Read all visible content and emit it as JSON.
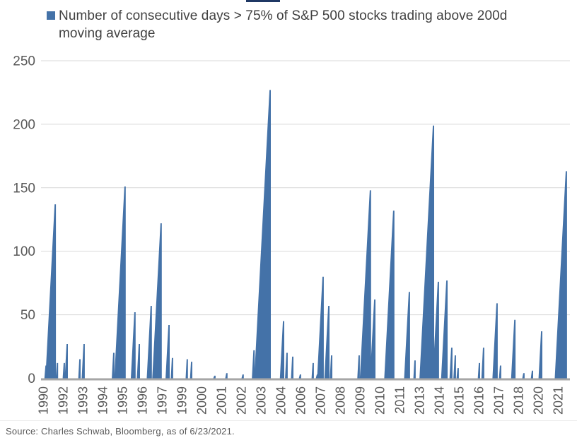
{
  "colors": {
    "bar": "#4472a8",
    "gridline": "#d9d9d9",
    "axis_line": "#a6a6a6",
    "axis_text": "#595959",
    "legend_text": "#404040",
    "top_artifact": "#1f3864"
  },
  "legend": {
    "line1": "Number of consecutive days > 75% of S&P 500 stocks trading above 200d",
    "line2": "moving average"
  },
  "source": {
    "text": "Source: Charles Schwab, Bloomberg, as of 6/23/2021."
  },
  "chart_data": {
    "type": "area",
    "title": "Number of consecutive days > 75% of S&P 500 stocks trading above 200d moving average",
    "xlabel": "",
    "ylabel": "",
    "ylim": [
      0,
      250
    ],
    "y_ticks": [
      0,
      50,
      100,
      150,
      200,
      250
    ],
    "grid": "horizontal",
    "legend_position": "top-left",
    "x_labels": [
      "1990",
      "1992",
      "1993",
      "1994",
      "1995",
      "1996",
      "1997",
      "1999",
      "2000",
      "2001",
      "2002",
      "2003",
      "2004",
      "2006",
      "2007",
      "2008",
      "2009",
      "2010",
      "2011",
      "2013",
      "2014",
      "2015",
      "2016",
      "2017",
      "2018",
      "2020",
      "2021"
    ],
    "spikes_format": "[approx_year_of_streak_end, peak_consecutive_days]",
    "spikes": [
      [
        1990.05,
        10
      ],
      [
        1990.6,
        137
      ],
      [
        1990.73,
        12
      ],
      [
        1991.14,
        12
      ],
      [
        1991.31,
        27
      ],
      [
        1992.07,
        15
      ],
      [
        1992.32,
        27
      ],
      [
        1994.09,
        20
      ],
      [
        1994.76,
        151
      ],
      [
        1995.35,
        52
      ],
      [
        1995.61,
        27
      ],
      [
        1996.32,
        57
      ],
      [
        1996.62,
        44
      ],
      [
        1996.91,
        122
      ],
      [
        1997.38,
        42
      ],
      [
        1997.59,
        16
      ],
      [
        1998.47,
        15
      ],
      [
        1998.73,
        13
      ],
      [
        2000.12,
        2
      ],
      [
        2000.83,
        4
      ],
      [
        2001.8,
        3
      ],
      [
        2002.45,
        22
      ],
      [
        2003.41,
        227
      ],
      [
        2004.21,
        45
      ],
      [
        2004.42,
        20
      ],
      [
        2004.76,
        17
      ],
      [
        2005.22,
        3
      ],
      [
        2005.98,
        12
      ],
      [
        2006.23,
        3
      ],
      [
        2006.57,
        80
      ],
      [
        2006.91,
        57
      ],
      [
        2007.08,
        18
      ],
      [
        2008.72,
        18
      ],
      [
        2009.39,
        148
      ],
      [
        2009.65,
        62
      ],
      [
        2010.78,
        132
      ],
      [
        2011.71,
        68
      ],
      [
        2012.05,
        14
      ],
      [
        2013.15,
        199
      ],
      [
        2013.44,
        76
      ],
      [
        2013.95,
        77
      ],
      [
        2014.24,
        24
      ],
      [
        2014.45,
        18
      ],
      [
        2014.62,
        8
      ],
      [
        2015.89,
        12
      ],
      [
        2016.14,
        24
      ],
      [
        2016.94,
        59
      ],
      [
        2017.15,
        10
      ],
      [
        2018.0,
        46
      ],
      [
        2018.54,
        4
      ],
      [
        2019.05,
        6
      ],
      [
        2019.6,
        37
      ],
      [
        2021.07,
        163
      ]
    ]
  }
}
